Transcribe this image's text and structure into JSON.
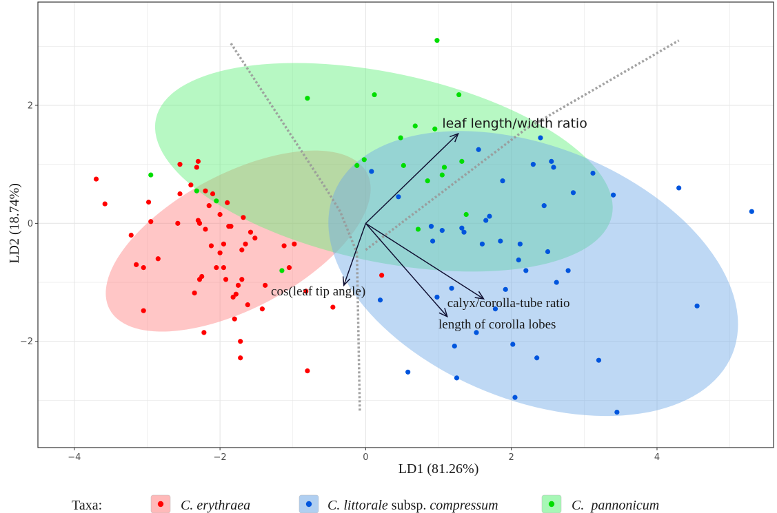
{
  "chart_data": {
    "type": "scatter",
    "xlabel": "LD1 (81.26%)",
    "ylabel": "LD2 (18.74%)",
    "xlim": [
      -4.5,
      5.6
    ],
    "ylim": [
      -3.8,
      3.75
    ],
    "x_ticks": [
      -4,
      -2,
      0,
      2,
      4
    ],
    "y_ticks": [
      -2,
      0,
      2
    ],
    "x_tick_labels": [
      "−4",
      "−2",
      "0",
      "2",
      "4"
    ],
    "y_tick_labels": [
      "−2",
      "0",
      "2"
    ],
    "grid": true,
    "legend_position": "bottom",
    "legend_title": "Taxa:",
    "colors": {
      "erythraea": "#ff0000",
      "littorale": "#0055dd",
      "pannonicum": "#00dd00",
      "erythraea_ellipse": "#ff8080",
      "littorale_ellipse": "#6fa8e6",
      "pannonicum_ellipse": "#5ff07a",
      "grid": "#e6e6e6",
      "frame": "#333333",
      "arrow": "#111133",
      "dotted_line": "#999999"
    },
    "series": [
      {
        "key": "erythraea",
        "legend_name_italic": "C. erythraea",
        "legend_name_plain": "",
        "points": [
          [
            -3.7,
            0.75
          ],
          [
            -3.58,
            0.33
          ],
          [
            -3.22,
            -0.2
          ],
          [
            -3.15,
            -0.7
          ],
          [
            -3.05,
            -0.75
          ],
          [
            -3.05,
            -1.48
          ],
          [
            -2.98,
            0.36
          ],
          [
            -2.95,
            0.03
          ],
          [
            -2.85,
            -0.6
          ],
          [
            -2.58,
            0.0
          ],
          [
            -2.55,
            0.5
          ],
          [
            -2.55,
            1.0
          ],
          [
            -2.4,
            0.65
          ],
          [
            -2.35,
            -1.18
          ],
          [
            -2.32,
            0.95
          ],
          [
            -2.3,
            1.05
          ],
          [
            -2.3,
            0.05
          ],
          [
            -2.28,
            0.0
          ],
          [
            -2.28,
            -0.95
          ],
          [
            -2.25,
            -0.9
          ],
          [
            -2.22,
            -1.85
          ],
          [
            -2.2,
            0.55
          ],
          [
            -2.2,
            -0.1
          ],
          [
            -2.15,
            0.3
          ],
          [
            -2.12,
            -0.38
          ],
          [
            -2.1,
            0.5
          ],
          [
            -2.05,
            -0.75
          ],
          [
            -2.0,
            -0.5
          ],
          [
            -2.0,
            0.15
          ],
          [
            -1.95,
            -0.35
          ],
          [
            -1.95,
            -0.75
          ],
          [
            -1.92,
            -0.95
          ],
          [
            -1.9,
            0.35
          ],
          [
            -1.88,
            -0.05
          ],
          [
            -1.85,
            -0.05
          ],
          [
            -1.82,
            -1.25
          ],
          [
            -1.8,
            -1.62
          ],
          [
            -1.78,
            -1.2
          ],
          [
            -1.75,
            -1.05
          ],
          [
            -1.72,
            -2.0
          ],
          [
            -1.72,
            -2.28
          ],
          [
            -1.7,
            -0.45
          ],
          [
            -1.7,
            -0.95
          ],
          [
            -1.68,
            0.1
          ],
          [
            -1.65,
            -0.35
          ],
          [
            -1.62,
            -1.38
          ],
          [
            -1.58,
            -0.15
          ],
          [
            -1.52,
            -0.25
          ],
          [
            -1.42,
            -1.45
          ],
          [
            -1.38,
            -1.05
          ],
          [
            -1.12,
            -0.38
          ],
          [
            -1.05,
            -0.75
          ],
          [
            -0.98,
            -0.35
          ],
          [
            -0.82,
            -1.15
          ],
          [
            -0.8,
            -2.5
          ],
          [
            -0.45,
            -1.42
          ],
          [
            0.22,
            -0.88
          ]
        ]
      },
      {
        "key": "littorale",
        "legend_name_italic": "C. littorale",
        "legend_name_plain": " subsp. ",
        "legend_name_italic2": "compressum",
        "points": [
          [
            0.08,
            0.88
          ],
          [
            0.2,
            -1.3
          ],
          [
            0.45,
            0.45
          ],
          [
            0.58,
            -2.52
          ],
          [
            0.9,
            -0.05
          ],
          [
            0.92,
            -0.3
          ],
          [
            0.98,
            -1.25
          ],
          [
            1.05,
            -0.12
          ],
          [
            1.18,
            -1.1
          ],
          [
            1.22,
            -2.08
          ],
          [
            1.25,
            -2.62
          ],
          [
            1.32,
            -0.08
          ],
          [
            1.35,
            -0.15
          ],
          [
            1.52,
            -1.85
          ],
          [
            1.55,
            1.25
          ],
          [
            1.6,
            -0.35
          ],
          [
            1.65,
            0.05
          ],
          [
            1.7,
            0.12
          ],
          [
            1.78,
            -1.45
          ],
          [
            1.85,
            -0.3
          ],
          [
            1.88,
            0.72
          ],
          [
            1.92,
            -1.12
          ],
          [
            2.02,
            -2.05
          ],
          [
            2.05,
            -2.95
          ],
          [
            2.1,
            -0.62
          ],
          [
            2.12,
            -0.35
          ],
          [
            2.2,
            -0.8
          ],
          [
            2.3,
            1.0
          ],
          [
            2.35,
            -2.28
          ],
          [
            2.4,
            1.45
          ],
          [
            2.45,
            0.3
          ],
          [
            2.5,
            -0.48
          ],
          [
            2.55,
            1.05
          ],
          [
            2.58,
            0.95
          ],
          [
            2.62,
            -1.0
          ],
          [
            2.78,
            -0.8
          ],
          [
            2.85,
            0.52
          ],
          [
            3.12,
            0.85
          ],
          [
            3.2,
            -2.32
          ],
          [
            3.4,
            0.48
          ],
          [
            3.45,
            -3.2
          ],
          [
            4.3,
            0.6
          ],
          [
            4.55,
            -1.4
          ],
          [
            5.3,
            0.2
          ]
        ]
      },
      {
        "key": "pannonicum",
        "legend_name_italic": "C.  pannonicum",
        "legend_name_plain": "",
        "points": [
          [
            -2.95,
            0.82
          ],
          [
            -2.32,
            0.55
          ],
          [
            -2.05,
            0.38
          ],
          [
            -1.15,
            -0.8
          ],
          [
            -0.8,
            2.12
          ],
          [
            -0.12,
            0.98
          ],
          [
            -0.02,
            1.08
          ],
          [
            0.12,
            2.18
          ],
          [
            0.48,
            1.45
          ],
          [
            0.52,
            0.98
          ],
          [
            0.68,
            1.65
          ],
          [
            0.72,
            -0.1
          ],
          [
            0.85,
            0.72
          ],
          [
            0.95,
            1.6
          ],
          [
            0.98,
            3.1
          ],
          [
            1.05,
            0.82
          ],
          [
            1.08,
            0.95
          ],
          [
            1.28,
            2.18
          ],
          [
            1.32,
            1.05
          ],
          [
            1.38,
            0.15
          ]
        ]
      }
    ],
    "ellipses": [
      {
        "key": "erythraea",
        "cx": -1.75,
        "cy": -0.3,
        "rx": 2.0,
        "ry": 1.14,
        "angle_deg": -28
      },
      {
        "key": "littorale",
        "cx": 2.3,
        "cy": -0.85,
        "rx": 2.95,
        "ry": 2.15,
        "angle_deg": 22
      },
      {
        "key": "pannonicum",
        "cx": 0.25,
        "cy": 0.95,
        "rx": 3.2,
        "ry": 1.6,
        "angle_deg": 12
      }
    ],
    "dotted_lines": [
      {
        "points": [
          [
            -1.85,
            3.05
          ],
          [
            -0.55,
            0.6
          ],
          [
            -0.35,
            0.2
          ],
          [
            -0.12,
            -0.5
          ],
          [
            -0.08,
            -3.2
          ]
        ]
      },
      {
        "points": [
          [
            0.0,
            -0.45
          ],
          [
            2.2,
            1.6
          ],
          [
            4.3,
            3.1
          ]
        ]
      }
    ],
    "arrows": [
      {
        "label": "leaf length/width ratio",
        "end": [
          1.27,
          1.52
        ]
      },
      {
        "label": "cos(leaf tip angle)",
        "end": [
          -0.3,
          -1.05
        ]
      },
      {
        "label": "calyx/corolla-tube ratio",
        "end": [
          1.62,
          -1.28
        ]
      },
      {
        "label": "length of corolla lobes",
        "end": [
          1.12,
          -1.58
        ]
      }
    ],
    "annotations": {
      "leaf_label": "leaf length/width ratio",
      "cos_label": "cos(leaf tip angle)",
      "calyx_label": "calyx/corolla-tube ratio",
      "corolla_label": "length of corolla lobes"
    }
  }
}
